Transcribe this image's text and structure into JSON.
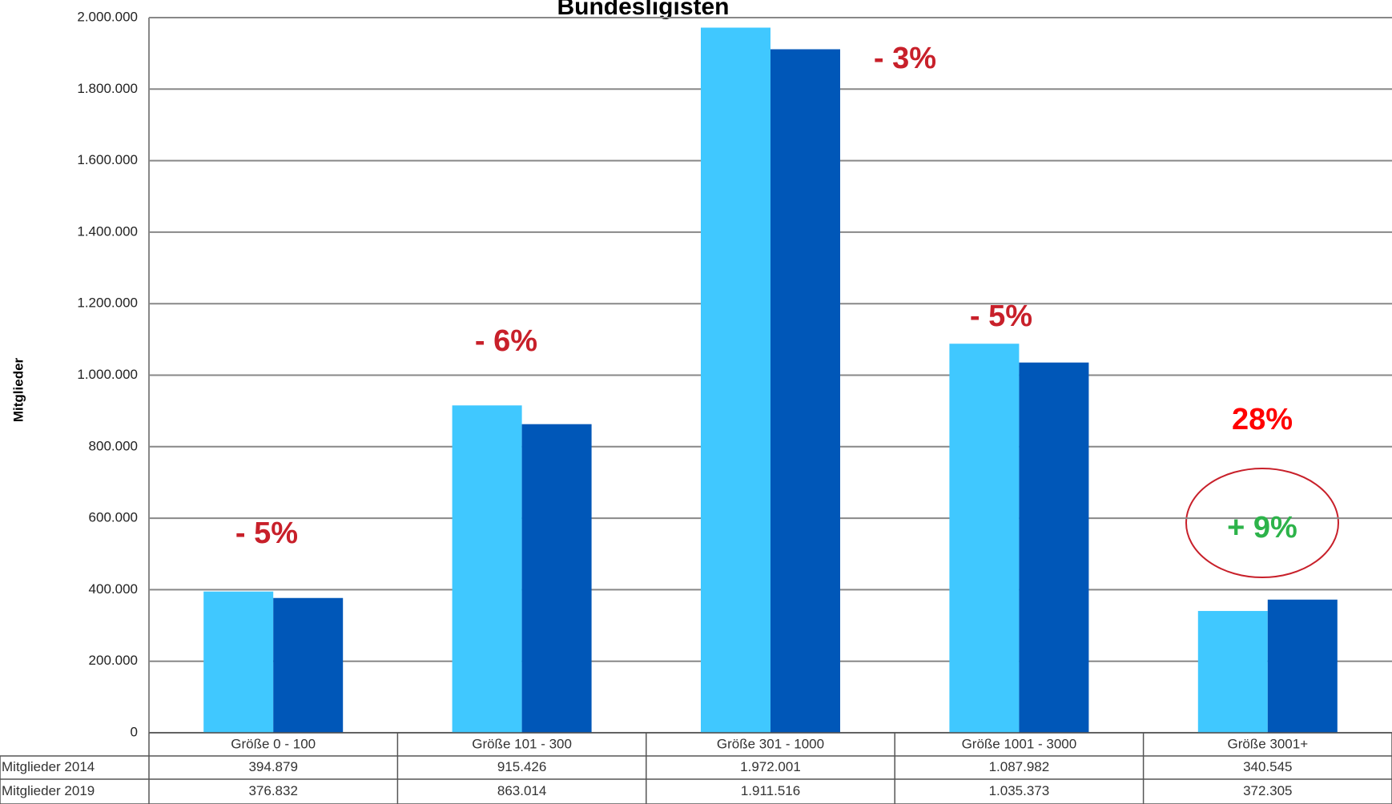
{
  "chart_data": {
    "type": "bar",
    "title": "Bundesligisten",
    "y_label": "Mitglieder",
    "categories": [
      "Größe 0 - 100",
      "Größe 101 - 300",
      "Größe 301 - 1000",
      "Größe 1001 - 3000",
      "Größe 3001+"
    ],
    "series": [
      {
        "name": "Mitglieder 2014",
        "color": "#40c8ff",
        "values": [
          394879,
          915426,
          1972001,
          1087982,
          340545
        ],
        "value_labels": [
          "394.879",
          "915.426",
          "1.972.001",
          "1.087.982",
          "340.545"
        ]
      },
      {
        "name": "Mitglieder 2019",
        "color": "#0057b8",
        "values": [
          376832,
          863014,
          1911516,
          1035373,
          372305
        ],
        "value_labels": [
          "376.832",
          "863.014",
          "1.911.516",
          "1.035.373",
          "372.305"
        ]
      }
    ],
    "ylim": [
      0,
      2000000
    ],
    "yticks": [
      0,
      {
        "value": 200000,
        "label": "200.000"
      },
      {
        "value": 400000,
        "label": "400.000"
      },
      {
        "value": 600000,
        "label": "600.000"
      },
      {
        "value": 800000,
        "label": "800.000"
      },
      {
        "value": 1000000,
        "label": "1.000.000"
      },
      {
        "value": 1200000,
        "label": "1.200.000"
      },
      {
        "value": 1400000,
        "label": "1.400.000"
      },
      {
        "value": 1600000,
        "label": "1.600.000"
      },
      {
        "value": 1800000,
        "label": "1.800.000"
      },
      {
        "value": 2000000,
        "label": "2.000.000"
      }
    ],
    "grid": true,
    "annotations": [
      {
        "text": "- 5%",
        "color": "#c8202a"
      },
      {
        "text": "- 6%",
        "color": "#c8202a"
      },
      {
        "text": "- 3%",
        "color": "#c8202a"
      },
      {
        "text": "- 5%",
        "color": "#c8202a"
      },
      {
        "text": "+ 9%",
        "color": "#2db34a"
      },
      {
        "text": "28%",
        "color": "#ff0000"
      }
    ]
  }
}
